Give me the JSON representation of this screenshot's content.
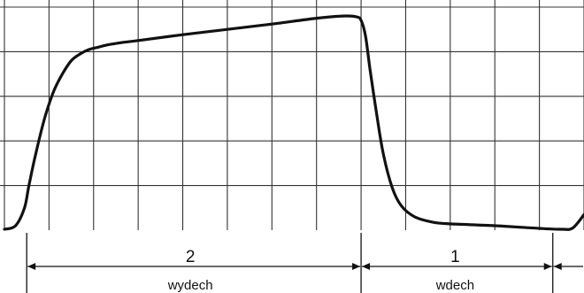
{
  "chart_data": {
    "type": "line",
    "title": "",
    "xlabel": "",
    "ylabel": "",
    "xlim": [
      0,
      13
    ],
    "ylim": [
      0,
      5
    ],
    "grid": true,
    "series": [
      {
        "x": [
          0,
          0.25,
          0.45,
          0.55,
          0.7,
          0.9,
          1.1,
          1.3,
          1.5,
          1.7,
          1.9,
          2.1,
          2.3,
          2.6,
          3,
          4,
          5,
          6,
          7,
          7.6,
          7.9,
          8.0,
          8.1,
          8.2,
          8.35,
          8.5,
          8.7,
          8.9,
          9.2,
          9.6,
          10,
          11,
          12,
          12.5,
          12.75,
          13
        ],
        "y": [
          0.02,
          0.1,
          0.5,
          1.0,
          1.7,
          2.5,
          3.1,
          3.5,
          3.8,
          3.95,
          4.05,
          4.1,
          4.15,
          4.2,
          4.25,
          4.38,
          4.5,
          4.62,
          4.75,
          4.8,
          4.78,
          4.7,
          4.35,
          3.6,
          2.6,
          1.7,
          0.95,
          0.55,
          0.3,
          0.18,
          0.14,
          0.1,
          0.04,
          0.02,
          0.05,
          0.35
        ]
      }
    ],
    "annotations": [
      {
        "label": "2",
        "text": "wydech",
        "from": 0.5,
        "to": 8.0
      },
      {
        "label": "1",
        "text": "wdech",
        "from": 8.0,
        "to": 12.3
      }
    ]
  }
}
